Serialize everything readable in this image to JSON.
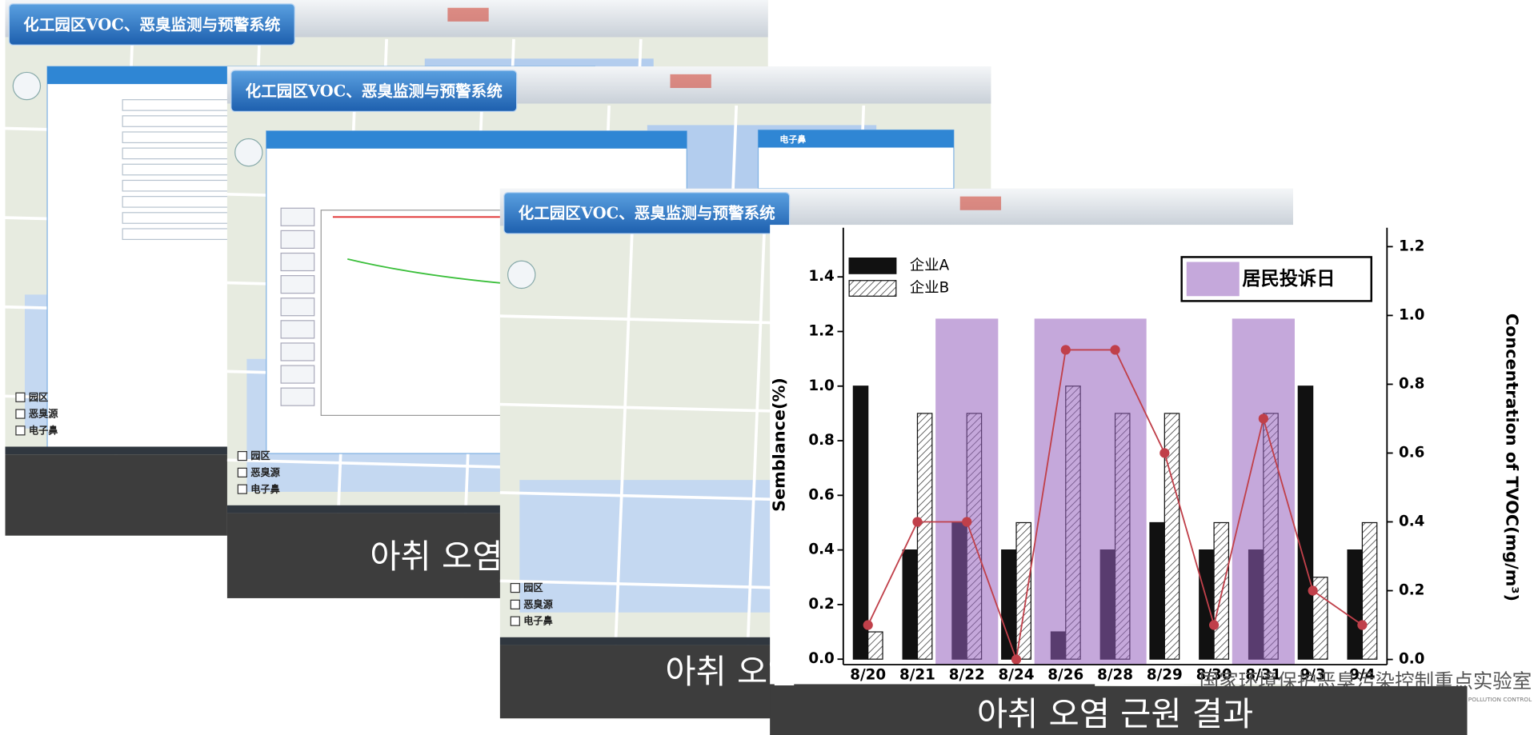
{
  "panels": [
    {
      "title": "化工园区VOC、恶臭监测与预警系统",
      "layers": [
        "园区",
        "恶臭源",
        "电子鼻"
      ]
    },
    {
      "title": "化工园区VOC、恶臭监测与预警系统",
      "layers": [
        "园区",
        "恶臭源",
        "电子鼻"
      ],
      "popup": "电子鼻"
    },
    {
      "title": "化工园区VOC、恶臭监测与预警系统",
      "layers": [
        "园区",
        "恶臭源",
        "电子鼻"
      ]
    }
  ],
  "captions": [
    "아취 오염",
    "아취 오염",
    "아취 오염 근원 결과"
  ],
  "lab": {
    "name": "国家环境保护恶臭污染控制重点实验室",
    "name_en": "ENVIRONMENTAL PROTECTION KEY LABORATORY OF ODOUR POLLUTION CONTROL"
  },
  "chart_data": {
    "type": "bar",
    "categories": [
      "8/20",
      "8/21",
      "8/22",
      "8/24",
      "8/26",
      "8/28",
      "8/29",
      "8/30",
      "8/31",
      "9/3",
      "9/4"
    ],
    "series": [
      {
        "name": "企业A",
        "color": "#111111",
        "values": [
          1.0,
          0.4,
          0.5,
          0.4,
          0.1,
          0.4,
          0.5,
          0.4,
          0.4,
          1.0,
          0.4
        ]
      },
      {
        "name": "企业B",
        "color": "#ffffff",
        "hatch": true,
        "values": [
          0.1,
          0.9,
          0.9,
          0.5,
          1.0,
          0.9,
          0.9,
          0.5,
          0.9,
          0.3,
          0.5
        ]
      },
      {
        "type": "line",
        "axis": "y2",
        "color": "#c0404a",
        "values": [
          0.1,
          0.4,
          0.4,
          0.0,
          0.9,
          0.9,
          0.6,
          0.1,
          0.7,
          0.2,
          0.1
        ]
      }
    ],
    "highlight": {
      "label": "居民投诉日",
      "color": "#9661be",
      "categories": [
        2,
        4,
        5,
        8
      ]
    },
    "ylabel": "Semblance(%)",
    "y2label": "Concentration of TVOC(mg/m³)",
    "ylim": [
      -0.02,
      1.58
    ],
    "yticks": [
      {
        "value": 0.0,
        "label": "0.0"
      },
      0.2,
      0.4,
      0.6,
      0.8,
      {
        "value": 1.0,
        "label": "1.0"
      },
      1.2,
      1.4
    ],
    "y2lim": [
      -0.015,
      1.255
    ],
    "y2ticks": [
      {
        "value": 0.0,
        "label": "0.0"
      },
      0.2,
      0.4,
      0.6,
      0.8,
      {
        "value": 1.0,
        "label": "1.0"
      },
      1.2
    ],
    "legend": "top-left"
  }
}
